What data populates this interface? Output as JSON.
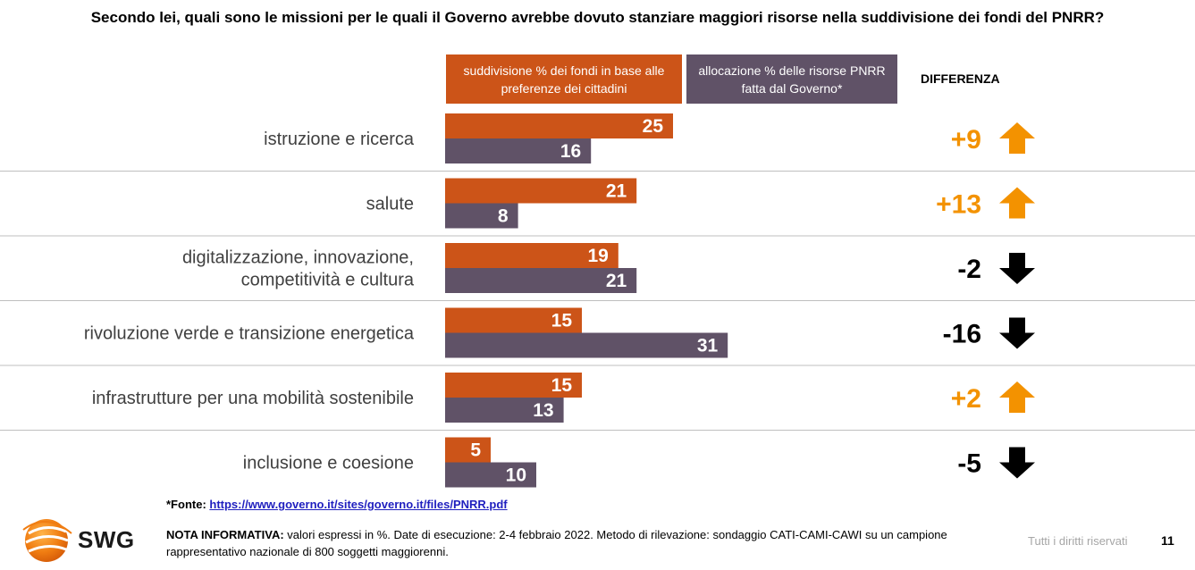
{
  "title": "Secondo lei, quali sono le missioni per le quali il Governo avrebbe dovuto stanziare maggiori risorse nella suddivisione dei fondi del PNRR?",
  "legend": {
    "series_a": "suddivisione % dei fondi in base alle preferenze dei cittadini",
    "series_b": "allocazione % delle risorse PNRR fatta dal Governo*",
    "difference": "DIFFERENZA"
  },
  "colors": {
    "series_a": "#cc5418",
    "series_b": "#605267",
    "positive": "#f39200",
    "negative": "#000000",
    "separator": "#bfbfbf"
  },
  "chart_data": {
    "type": "bar",
    "orientation": "horizontal",
    "categories": [
      "istruzione e ricerca",
      "salute",
      "digitalizzazione, innovazione, competitività e cultura",
      "rivoluzione verde e transizione energetica",
      "infrastrutture per una mobilità sostenibile",
      "inclusione e coesione"
    ],
    "category_lines": [
      [
        "istruzione e ricerca"
      ],
      [
        "salute"
      ],
      [
        "digitalizzazione, innovazione,",
        "competitività e cultura"
      ],
      [
        "rivoluzione verde e transizione energetica"
      ],
      [
        "infrastrutture per una mobilità sostenibile"
      ],
      [
        "inclusione e coesione"
      ]
    ],
    "series": [
      {
        "name": "suddivisione % dei fondi in base alle preferenze dei cittadini",
        "values": [
          25,
          21,
          19,
          15,
          15,
          5
        ]
      },
      {
        "name": "allocazione % delle risorse PNRR fatta dal Governo*",
        "values": [
          16,
          8,
          21,
          31,
          13,
          10
        ]
      }
    ],
    "differences": [
      "+9",
      "+13",
      "-2",
      "-16",
      "+2",
      "-5"
    ],
    "difference_direction": [
      "up",
      "up",
      "down",
      "down",
      "up",
      "down"
    ],
    "unit": "%"
  },
  "footer": {
    "fonte_label": "*Fonte: ",
    "fonte_link": "https://www.governo.it/sites/governo.it/files/PNRR.pdf",
    "nota_label": "NOTA INFORMATIVA:",
    "nota_text": " valori espressi in %. Date di esecuzione: 2-4 febbraio 2022. Metodo di rilevazione: sondaggio CATI-CAMI-CAWI su un campione rappresentativo nazionale di 800 soggetti maggiorenni.",
    "brand": "SWG",
    "rights": "Tutti i diritti riservati",
    "page_number": "11"
  }
}
